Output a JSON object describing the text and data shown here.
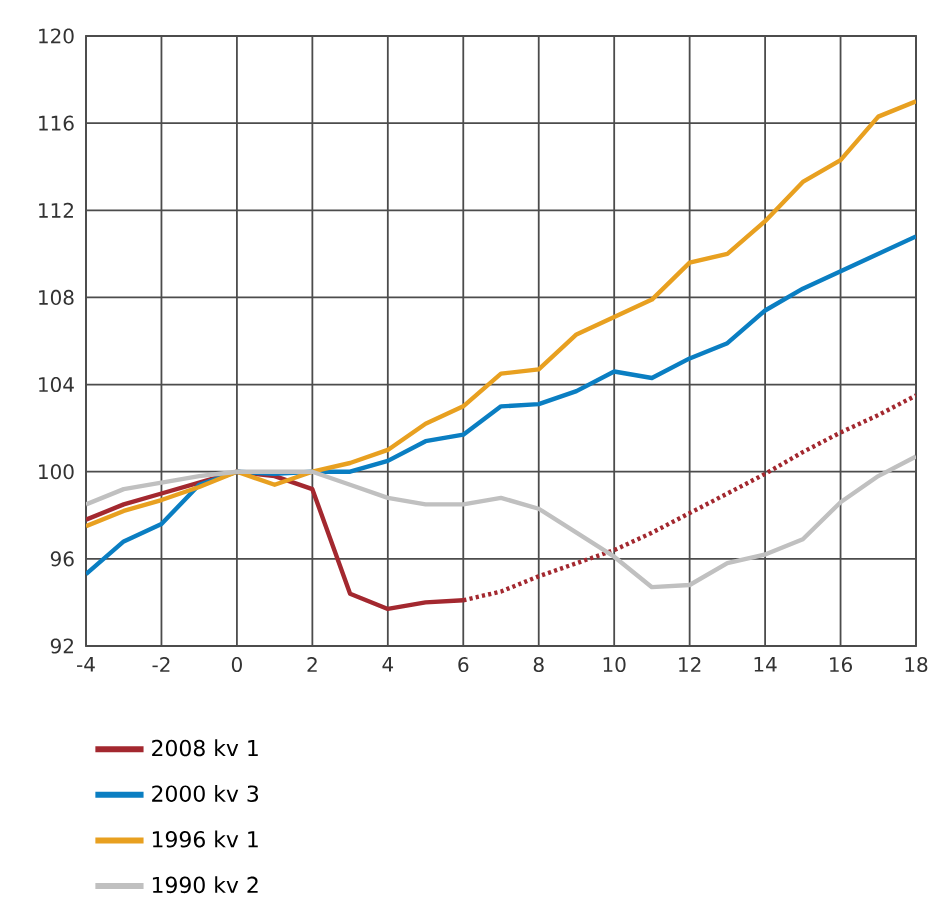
{
  "chart_data": {
    "type": "line",
    "x": [
      -4,
      -3,
      -2,
      -1,
      0,
      1,
      2,
      3,
      4,
      5,
      6,
      7,
      8,
      9,
      10,
      11,
      12,
      13,
      14,
      15,
      16,
      17,
      18
    ],
    "series": [
      {
        "name": "2008 kv 1",
        "color": "#a3282f",
        "line_style": "solid",
        "x": [
          -4,
          -3,
          -2,
          -1,
          0,
          1,
          2,
          3,
          4,
          5,
          6
        ],
        "values": [
          97.8,
          98.5,
          99.0,
          99.5,
          100,
          99.8,
          99.2,
          94.4,
          93.7,
          94.0,
          94.1
        ]
      },
      {
        "color": "#a3282f",
        "line_style": "dotted",
        "x": [
          6,
          7,
          8,
          9,
          10,
          11,
          12,
          13,
          14,
          15,
          16,
          17,
          18
        ],
        "values": [
          94.1,
          94.5,
          95.2,
          95.8,
          96.4,
          97.2,
          98.1,
          99.0,
          99.9,
          100.9,
          101.8,
          102.6,
          103.5
        ]
      },
      {
        "name": "2000 kv 3",
        "color": "#0a7ec2",
        "values": [
          95.3,
          96.8,
          97.6,
          99.4,
          100,
          99.9,
          100,
          100,
          100.5,
          101.4,
          101.7,
          103.0,
          103.1,
          103.7,
          104.6,
          104.3,
          105.2,
          105.9,
          107.4,
          108.4,
          109.2,
          110.0,
          110.8
        ]
      },
      {
        "name": "1996 kv 1",
        "color": "#e8a020",
        "values": [
          97.5,
          98.2,
          98.7,
          99.3,
          100,
          99.4,
          100,
          100.4,
          101.0,
          102.2,
          103.0,
          104.5,
          104.7,
          106.3,
          107.1,
          107.9,
          109.6,
          110.0,
          111.5,
          113.3,
          114.3,
          116.3,
          117.0
        ]
      },
      {
        "name": "1990 kv 2",
        "color": "#c0c0c0",
        "values": [
          98.5,
          99.2,
          99.5,
          99.8,
          100,
          100,
          100,
          99.4,
          98.8,
          98.5,
          98.5,
          98.8,
          98.3,
          97.2,
          96.1,
          94.7,
          94.8,
          95.8,
          96.2,
          96.9,
          98.6,
          99.8,
          100.7
        ]
      }
    ],
    "xlim": [
      -4,
      18
    ],
    "xticks": [
      -4,
      -2,
      0,
      2,
      4,
      6,
      8,
      10,
      12,
      14,
      16,
      18
    ],
    "ylim": [
      92,
      120
    ],
    "yticks": [
      92,
      96,
      100,
      104,
      108,
      112,
      116,
      120
    ],
    "grid": true,
    "legend": "bottom",
    "marker": "none"
  }
}
